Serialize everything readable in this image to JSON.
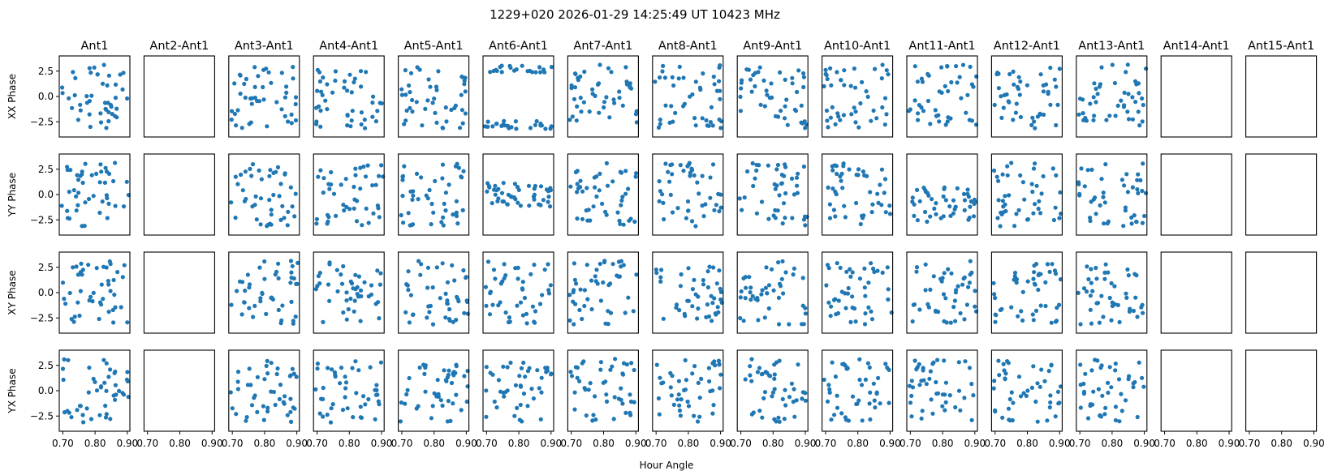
{
  "chart_data": {
    "type": "scatter",
    "title": "1229+020  2026-01-29 14:25:49 UT  10423 MHz",
    "xlabel": "Hour Angle",
    "xlim": [
      0.689,
      0.908
    ],
    "ylim": [
      -4.0,
      4.0
    ],
    "xticks": [
      0.7,
      0.8,
      0.9
    ],
    "xtick_labels": [
      "0.70",
      "0.80",
      "0.90"
    ],
    "yticks": [
      2.5,
      0.0,
      -2.5
    ],
    "ytick_labels": [
      "2.5",
      "0.0",
      "−2.5"
    ],
    "grid": false,
    "marker_color": "#1f77b4",
    "rows": [
      {
        "ylabel": "XX Phase"
      },
      {
        "ylabel": "YY Phase"
      },
      {
        "ylabel": "XY Phase"
      },
      {
        "ylabel": "YX Phase"
      }
    ],
    "columns": [
      {
        "title": "Ant1",
        "has_data": true
      },
      {
        "title": "Ant2-Ant1",
        "has_data": false
      },
      {
        "title": "Ant3-Ant1",
        "has_data": true
      },
      {
        "title": "Ant4-Ant1",
        "has_data": true
      },
      {
        "title": "Ant5-Ant1",
        "has_data": true
      },
      {
        "title": "Ant6-Ant1",
        "has_data": true
      },
      {
        "title": "Ant7-Ant1",
        "has_data": true
      },
      {
        "title": "Ant8-Ant1",
        "has_data": true
      },
      {
        "title": "Ant9-Ant1",
        "has_data": true
      },
      {
        "title": "Ant10-Ant1",
        "has_data": true
      },
      {
        "title": "Ant11-Ant1",
        "has_data": true
      },
      {
        "title": "Ant12-Ant1",
        "has_data": true
      },
      {
        "title": "Ant13-Ant1",
        "has_data": true
      },
      {
        "title": "Ant14-Ant1",
        "has_data": false
      },
      {
        "title": "Ant15-Ant1",
        "has_data": false
      }
    ],
    "points_per_panel": 46,
    "phase_range": [
      -3.14,
      3.14
    ]
  }
}
